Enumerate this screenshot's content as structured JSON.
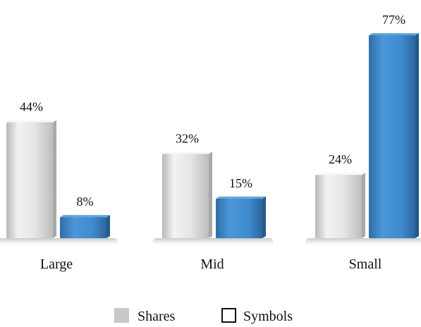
{
  "chart_data": {
    "type": "bar",
    "categories": [
      "Large",
      "Mid",
      "Small"
    ],
    "series": [
      {
        "name": "Shares",
        "values": [
          44,
          32,
          24
        ],
        "labels": [
          "44%",
          "32%",
          "24%"
        ],
        "color": "#d4d4d4"
      },
      {
        "name": "Symbols",
        "values": [
          8,
          15,
          77
        ],
        "labels": [
          "8%",
          "15%",
          "77%"
        ],
        "color": "#3e8bd0"
      }
    ],
    "ylim": [
      0,
      80
    ],
    "grid": false,
    "legend": "bottom",
    "legend_swatches": [
      {
        "series": "Shares",
        "style": "filled",
        "color": "#c8c8c8"
      },
      {
        "series": "Symbols",
        "style": "outline",
        "color": "#111111"
      }
    ]
  }
}
